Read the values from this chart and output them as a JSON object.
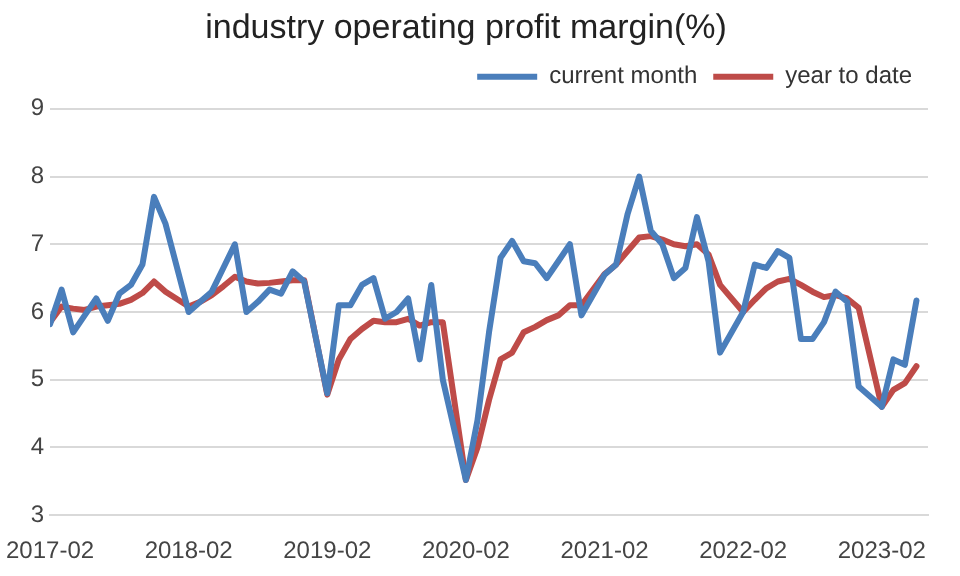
{
  "chart_data": {
    "type": "line",
    "title": "industry operating profit margin(%)",
    "x": [
      "2017-02",
      "2017-03",
      "2017-04",
      "2017-05",
      "2017-06",
      "2017-07",
      "2017-08",
      "2017-09",
      "2017-10",
      "2017-11",
      "2017-12",
      "2018-02",
      "2018-03",
      "2018-04",
      "2018-05",
      "2018-06",
      "2018-07",
      "2018-08",
      "2018-09",
      "2018-10",
      "2018-11",
      "2018-12",
      "2019-02",
      "2019-03",
      "2019-04",
      "2019-05",
      "2019-06",
      "2019-07",
      "2019-08",
      "2019-09",
      "2019-10",
      "2019-11",
      "2019-12",
      "2020-02",
      "2020-03",
      "2020-04",
      "2020-05",
      "2020-06",
      "2020-07",
      "2020-08",
      "2020-09",
      "2020-10",
      "2020-11",
      "2020-12",
      "2021-02",
      "2021-03",
      "2021-04",
      "2021-05",
      "2021-06",
      "2021-07",
      "2021-08",
      "2021-09",
      "2021-10",
      "2021-11",
      "2021-12",
      "2022-02",
      "2022-03",
      "2022-04",
      "2022-05",
      "2022-06",
      "2022-07",
      "2022-08",
      "2022-09",
      "2022-10",
      "2022-11",
      "2022-12",
      "2023-02",
      "2023-03",
      "2023-04",
      "2023-05"
    ],
    "series": [
      {
        "name": "current month",
        "color": "#4a7ebb",
        "values": [
          5.82,
          6.33,
          5.7,
          5.95,
          6.2,
          5.87,
          6.27,
          6.4,
          6.7,
          7.7,
          7.3,
          6.0,
          6.15,
          6.3,
          6.65,
          7.0,
          6.0,
          6.15,
          6.33,
          6.27,
          6.6,
          6.45,
          4.8,
          6.1,
          6.1,
          6.4,
          6.5,
          5.9,
          6.0,
          6.2,
          5.3,
          6.4,
          5.0,
          3.52,
          4.4,
          5.7,
          6.8,
          7.05,
          6.75,
          6.72,
          6.5,
          6.75,
          7.0,
          5.95,
          6.55,
          6.7,
          7.45,
          8.0,
          7.2,
          7.0,
          6.5,
          6.65,
          7.4,
          6.75,
          5.4,
          6.0,
          6.7,
          6.65,
          6.9,
          6.8,
          5.6,
          5.6,
          5.85,
          6.3,
          6.15,
          4.9,
          4.6,
          5.3,
          5.22,
          6.17
        ]
      },
      {
        "name": "year to date",
        "color": "#be4b48",
        "values": [
          5.85,
          6.08,
          6.05,
          6.03,
          6.08,
          6.1,
          6.12,
          6.18,
          6.28,
          6.45,
          6.3,
          6.08,
          6.15,
          6.25,
          6.38,
          6.52,
          6.45,
          6.42,
          6.43,
          6.45,
          6.47,
          6.47,
          4.78,
          5.3,
          5.6,
          5.75,
          5.87,
          5.85,
          5.85,
          5.9,
          5.8,
          5.85,
          5.85,
          3.52,
          4.0,
          4.7,
          5.3,
          5.4,
          5.7,
          5.78,
          5.88,
          5.95,
          6.1,
          6.1,
          6.56,
          6.7,
          6.9,
          7.1,
          7.12,
          7.07,
          7.0,
          6.97,
          7.0,
          6.85,
          6.4,
          6.0,
          6.18,
          6.35,
          6.45,
          6.49,
          6.4,
          6.3,
          6.22,
          6.25,
          6.2,
          6.06,
          4.6,
          4.85,
          4.95,
          5.2
        ]
      }
    ],
    "xlim": [
      "2017-02",
      "2023-06"
    ],
    "xticks": [
      "2017-02",
      "2018-02",
      "2019-02",
      "2020-02",
      "2021-02",
      "2022-02",
      "2023-02"
    ],
    "ylim": [
      3,
      9
    ],
    "yticks": [
      3,
      4,
      5,
      6,
      7,
      8,
      9
    ],
    "grid": "y",
    "legend": "top right",
    "marker": "none",
    "line_style": "solid"
  }
}
